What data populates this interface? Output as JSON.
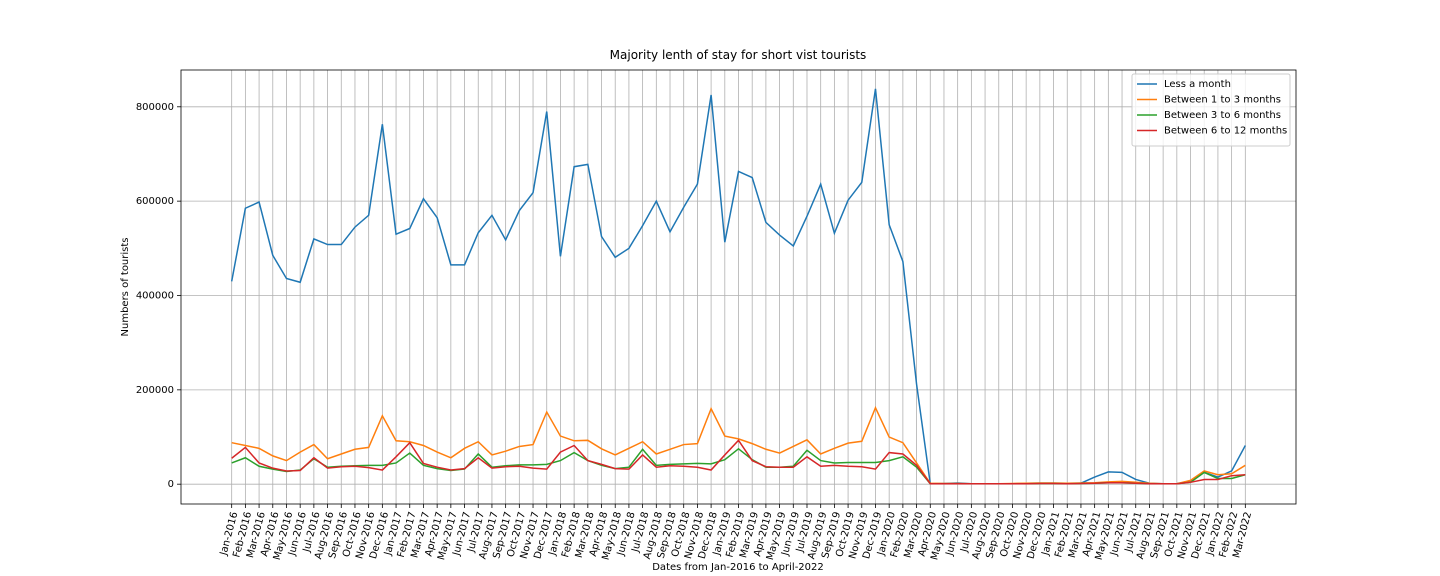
{
  "chart_data": {
    "type": "line",
    "title": "Majority lenth of stay for short vist tourists",
    "xlabel": "Dates from Jan-2016 to April-2022",
    "ylabel": "Numbers of tourists",
    "categories": [
      "Jan-2016",
      "Feb-2016",
      "Mar-2016",
      "Apr-2016",
      "May-2016",
      "Jun-2016",
      "Jul-2016",
      "Aug-2016",
      "Sep-2016",
      "Oct-2016",
      "Nov-2016",
      "Dec-2016",
      "Jan-2017",
      "Feb-2017",
      "Mar-2017",
      "Apr-2017",
      "May-2017",
      "Jun-2017",
      "Jul-2017",
      "Aug-2017",
      "Sep-2017",
      "Oct-2017",
      "Nov-2017",
      "Dec-2017",
      "Jan-2018",
      "Feb-2018",
      "Mar-2018",
      "Apr-2018",
      "May-2018",
      "Jun-2018",
      "Jul-2018",
      "Aug-2018",
      "Sep-2018",
      "Oct-2018",
      "Nov-2018",
      "Dec-2018",
      "Jan-2019",
      "Feb-2019",
      "Mar-2019",
      "Apr-2019",
      "May-2019",
      "Jun-2019",
      "Jul-2019",
      "Aug-2019",
      "Sep-2019",
      "Oct-2019",
      "Nov-2019",
      "Dec-2019",
      "Jan-2020",
      "Feb-2020",
      "Mar-2020",
      "Apr-2020",
      "May-2020",
      "Jun-2020",
      "Jul-2020",
      "Aug-2020",
      "Sep-2020",
      "Oct-2020",
      "Nov-2020",
      "Dec-2020",
      "Jan-2021",
      "Feb-2021",
      "Mar-2021",
      "Apr-2021",
      "May-2021",
      "Jun-2021",
      "Jul-2021",
      "Aug-2021",
      "Sep-2021",
      "Oct-2021",
      "Nov-2021",
      "Dec-2021",
      "Jan-2022",
      "Feb-2022",
      "Mar-2022"
    ],
    "series": [
      {
        "name": "Less a month",
        "color": "#1f77b4",
        "values": [
          430000,
          585000,
          598000,
          485000,
          436000,
          428000,
          520000,
          508000,
          508000,
          545000,
          570000,
          763000,
          530000,
          542000,
          605000,
          565000,
          465000,
          465000,
          533000,
          570000,
          518000,
          580000,
          618000,
          790000,
          483000,
          673000,
          678000,
          525000,
          481000,
          500000,
          548000,
          600000,
          535000,
          587000,
          636000,
          825000,
          513000,
          663000,
          650000,
          555000,
          528000,
          505000,
          568000,
          636000,
          532000,
          602000,
          640000,
          838000,
          550000,
          472000,
          212000,
          1000,
          1500,
          2500,
          1000,
          1000,
          1000,
          1000,
          1500,
          2000,
          2000,
          1500,
          2000,
          15000,
          26000,
          25000,
          10000,
          2000,
          1000,
          1000,
          5000,
          25000,
          15000,
          28000,
          82000
        ]
      },
      {
        "name": "Between 1 to 3 months",
        "color": "#ff7f0e",
        "values": [
          88000,
          82000,
          76000,
          60000,
          50000,
          68000,
          84000,
          54000,
          64000,
          74000,
          78000,
          145000,
          92000,
          90000,
          82000,
          68000,
          56000,
          76000,
          90000,
          62000,
          70000,
          80000,
          84000,
          153000,
          102000,
          92000,
          93000,
          75000,
          62000,
          76000,
          90000,
          64000,
          74000,
          84000,
          86000,
          160000,
          102000,
          96000,
          86000,
          74000,
          66000,
          80000,
          94000,
          64000,
          76000,
          87000,
          91000,
          162000,
          100000,
          88000,
          45000,
          2000,
          1500,
          1500,
          1000,
          1000,
          1000,
          1500,
          2000,
          2500,
          2500,
          2000,
          2500,
          3000,
          5000,
          6000,
          4000,
          2000,
          1000,
          1000,
          8000,
          28000,
          20000,
          22000,
          40000
        ]
      },
      {
        "name": "Between 3 to 6 months",
        "color": "#2ca02c",
        "values": [
          45000,
          56000,
          38000,
          32000,
          27000,
          30000,
          54000,
          36000,
          38000,
          39000,
          40000,
          40000,
          45000,
          66000,
          40000,
          33000,
          29000,
          32000,
          64000,
          36000,
          39000,
          41000,
          41000,
          42000,
          50000,
          67000,
          50000,
          40000,
          33000,
          36000,
          74000,
          40000,
          42000,
          43000,
          44000,
          43000,
          52000,
          75000,
          52000,
          36000,
          36000,
          38000,
          72000,
          50000,
          45000,
          46000,
          46000,
          46000,
          50000,
          58000,
          36000,
          1000,
          1000,
          1000,
          1000,
          1000,
          1000,
          1000,
          1000,
          1500,
          1500,
          1000,
          1500,
          2000,
          3000,
          3000,
          2000,
          1000,
          1000,
          1000,
          4000,
          25000,
          12000,
          12000,
          20000
        ]
      },
      {
        "name": "Between 6 to 12 months",
        "color": "#d62728",
        "values": [
          55000,
          78000,
          45000,
          34000,
          28000,
          29000,
          56000,
          34000,
          37000,
          38000,
          35000,
          30000,
          58000,
          88000,
          44000,
          36000,
          30000,
          33000,
          56000,
          34000,
          37000,
          38000,
          34000,
          32000,
          68000,
          82000,
          50000,
          42000,
          33000,
          32000,
          62000,
          36000,
          39000,
          38000,
          36000,
          30000,
          62000,
          93000,
          50000,
          37000,
          36000,
          36000,
          58000,
          38000,
          40000,
          38000,
          37000,
          32000,
          67000,
          64000,
          40000,
          1000,
          1000,
          1000,
          1000,
          1000,
          1000,
          1000,
          1000,
          1500,
          1500,
          1000,
          1500,
          2000,
          3000,
          3000,
          2000,
          1000,
          1000,
          1000,
          4000,
          10000,
          10000,
          18000,
          20000
        ]
      }
    ],
    "ylim": [
      -42000,
      878000
    ],
    "yticks": [
      0,
      200000,
      400000,
      600000,
      800000
    ],
    "grid": true,
    "legend": "upper right"
  }
}
